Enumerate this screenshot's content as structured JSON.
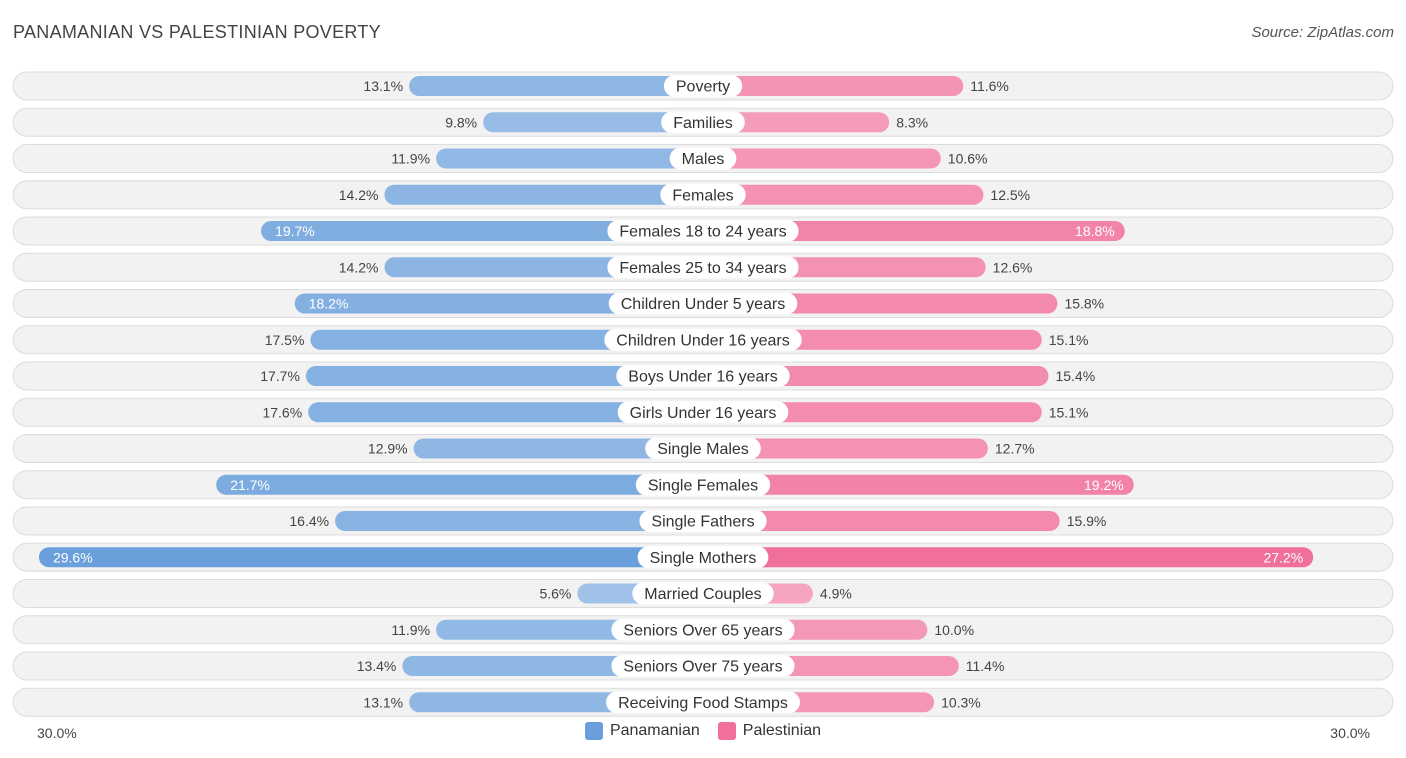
{
  "title": "PANAMANIAN VS PALESTINIAN POVERTY",
  "source": "Source: ZipAtlas.com",
  "chart_data": {
    "type": "bar",
    "orientation": "horizontal-diverging",
    "categories": [
      "Poverty",
      "Families",
      "Males",
      "Females",
      "Females 18 to 24 years",
      "Females 25 to 34 years",
      "Children Under 5 years",
      "Children Under 16 years",
      "Boys Under 16 years",
      "Girls Under 16 years",
      "Single Males",
      "Single Females",
      "Single Fathers",
      "Single Mothers",
      "Married Couples",
      "Seniors Over 65 years",
      "Seniors Over 75 years",
      "Receiving Food Stamps"
    ],
    "series": [
      {
        "name": "Panamanian",
        "color": "#6a9fdb",
        "values": [
          13.1,
          9.8,
          11.9,
          14.2,
          19.7,
          14.2,
          18.2,
          17.5,
          17.7,
          17.6,
          12.9,
          21.7,
          16.4,
          29.6,
          5.6,
          11.9,
          13.4,
          13.1
        ]
      },
      {
        "name": "Palestinian",
        "color": "#f06f9b",
        "values": [
          11.6,
          8.3,
          10.6,
          12.5,
          18.8,
          12.6,
          15.8,
          15.1,
          15.4,
          15.1,
          12.7,
          19.2,
          15.9,
          27.2,
          4.9,
          10.0,
          11.4,
          10.3
        ]
      }
    ],
    "xlim": [
      -30,
      30
    ],
    "axis_left_label": "30.0%",
    "axis_right_label": "30.0%",
    "value_suffix": "%"
  },
  "legend": {
    "items": [
      {
        "label": "Panamanian",
        "color": "#6a9fdb"
      },
      {
        "label": "Palestinian",
        "color": "#f06f9b"
      }
    ]
  }
}
